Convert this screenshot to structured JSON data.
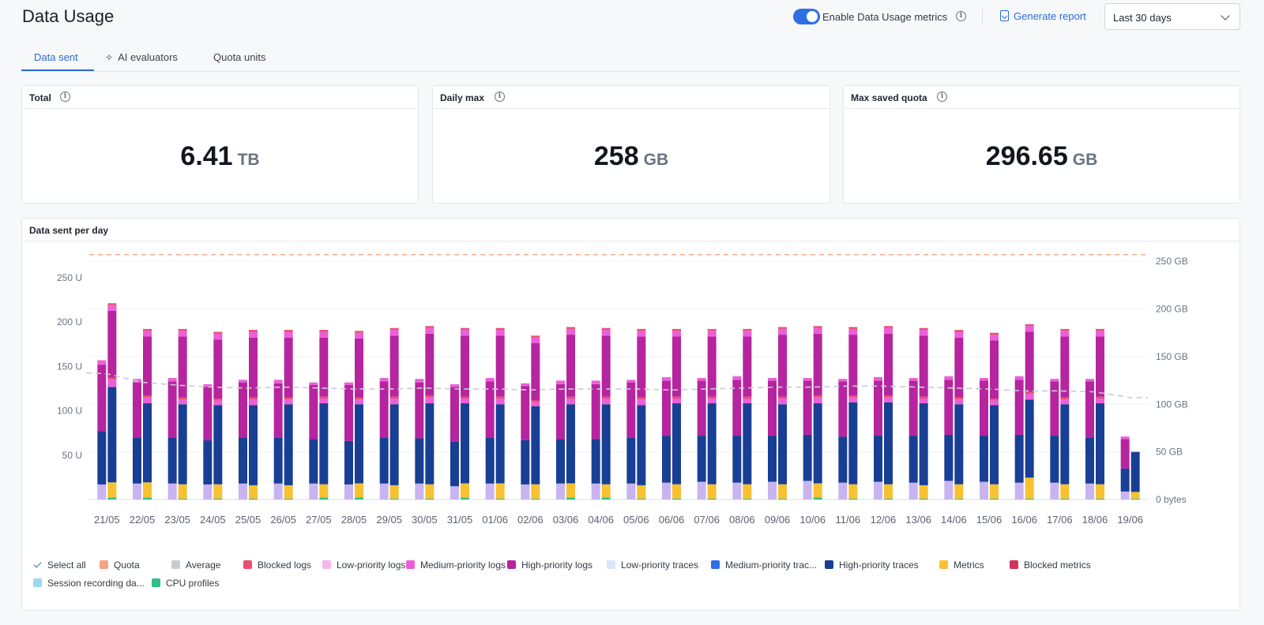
{
  "header": {
    "title": "Data Usage",
    "toggle_label": "Enable Data Usage metrics",
    "generate_report": "Generate report",
    "range_value": "Last 30 days"
  },
  "tabs": [
    {
      "label": "Data sent"
    },
    {
      "label": "AI evaluators"
    },
    {
      "label": "Quota units"
    }
  ],
  "cards": [
    {
      "title": "Total",
      "value": "6.41",
      "unit": "TB"
    },
    {
      "title": "Daily max",
      "value": "258",
      "unit": "GB"
    },
    {
      "title": "Max saved quota",
      "value": "296.65",
      "unit": "GB"
    }
  ],
  "chart": {
    "title": "Data sent per day"
  },
  "legend": {
    "select_all": "Select all",
    "items": [
      {
        "label": "Quota",
        "color": "#f4a582"
      },
      {
        "label": "Average",
        "color": "#c8ccd2"
      },
      {
        "label": "Blocked logs",
        "color": "#e8506f"
      },
      {
        "label": "Low-priority logs",
        "color": "#f7b6e8"
      },
      {
        "label": "Medium-priority logs",
        "color": "#ec5fd9"
      },
      {
        "label": "High-priority logs",
        "color": "#b6249f"
      },
      {
        "label": "Low-priority traces",
        "color": "#d9e6fb"
      },
      {
        "label": "Medium-priority trac...",
        "color": "#2f6fe4"
      },
      {
        "label": "High-priority traces",
        "color": "#183f94"
      },
      {
        "label": "Metrics",
        "color": "#f8c12f"
      },
      {
        "label": "Blocked metrics",
        "color": "#d4335f"
      },
      {
        "label": "Session recording da...",
        "color": "#9ad9f2"
      },
      {
        "label": "CPU profiles",
        "color": "#2fbf87"
      }
    ]
  },
  "chart_data": {
    "type": "bar",
    "title": "Data sent per day",
    "stacked": true,
    "categories": [
      "21/05",
      "22/05",
      "23/05",
      "24/05",
      "25/05",
      "26/05",
      "27/05",
      "28/05",
      "29/05",
      "30/05",
      "31/05",
      "01/06",
      "02/06",
      "03/06",
      "04/06",
      "05/06",
      "06/06",
      "07/06",
      "08/06",
      "09/06",
      "10/06",
      "11/06",
      "12/06",
      "13/06",
      "14/06",
      "15/06",
      "16/06",
      "17/06",
      "18/06",
      "19/06"
    ],
    "left_axis": {
      "ticks": [
        "50 U",
        "100 U",
        "150 U",
        "200 U",
        "250 U"
      ],
      "range": [
        0,
        290
      ]
    },
    "right_axis": {
      "ticks": [
        "0 bytes",
        "50 GB",
        "100 GB",
        "150 GB",
        "200 GB",
        "250 GB"
      ],
      "range": [
        0,
        250
      ]
    },
    "quota_line": {
      "name": "Quota",
      "value_gb": 257,
      "color": "#f4a582"
    },
    "average_line": {
      "name": "Average",
      "values_gb": [
        132,
        123,
        120,
        118,
        117,
        118,
        117,
        116,
        116,
        117,
        116,
        116,
        115,
        116,
        116,
        116,
        115,
        116,
        117,
        118,
        118,
        119,
        119,
        118,
        117,
        116,
        114,
        114,
        113,
        107
      ]
    },
    "grid": true,
    "legend_position": "bottom",
    "units_series": [
      {
        "name": "Low-priority traces",
        "color": "#c8b4f0",
        "values": [
          17,
          18,
          18,
          17,
          18,
          18,
          18,
          17,
          18,
          18,
          15,
          18,
          17,
          18,
          18,
          18,
          19,
          20,
          19,
          20,
          21,
          19,
          20,
          19,
          21,
          20,
          19,
          19,
          18,
          9
        ]
      },
      {
        "name": "High-priority traces",
        "color": "#183f94",
        "values": [
          60,
          52,
          52,
          50,
          52,
          52,
          50,
          49,
          52,
          51,
          50,
          52,
          50,
          50,
          50,
          52,
          53,
          52,
          53,
          52,
          52,
          52,
          52,
          53,
          52,
          52,
          54,
          53,
          52,
          26
        ]
      },
      {
        "name": "High-priority logs",
        "color": "#b6249f",
        "values": [
          75,
          62,
          63,
          60,
          62,
          61,
          61,
          63,
          63,
          63,
          62,
          63,
          61,
          62,
          62,
          62,
          62,
          62,
          63,
          62,
          61,
          62,
          62,
          62,
          62,
          62,
          62,
          61,
          63,
          33
        ]
      },
      {
        "name": "Medium-priority logs",
        "color": "#ec5fd9",
        "values": [
          5,
          4,
          4,
          3,
          3,
          4,
          3,
          3,
          4,
          4,
          3,
          4,
          3,
          4,
          4,
          3,
          4,
          3,
          4,
          3,
          3,
          3,
          4,
          3,
          4,
          3,
          4,
          3,
          3,
          3
        ]
      }
    ],
    "gb_series": [
      {
        "name": "CPU profiles",
        "color": "#2fbf87",
        "values": [
          2,
          2,
          1,
          1,
          1,
          1,
          2,
          2,
          1,
          1,
          2,
          1,
          1,
          2,
          2,
          1,
          1,
          1,
          1,
          1,
          2,
          1,
          1,
          1,
          1,
          1,
          1,
          1,
          1,
          1
        ]
      },
      {
        "name": "Metrics",
        "color": "#f8c12f",
        "values": [
          16,
          16,
          15,
          15,
          14,
          14,
          14,
          15,
          14,
          15,
          15,
          16,
          15,
          15,
          14,
          14,
          15,
          15,
          15,
          15,
          15,
          15,
          15,
          14,
          15,
          15,
          22,
          15,
          15,
          7
        ]
      },
      {
        "name": "High-priority traces",
        "color": "#183f94",
        "values": [
          100,
          83,
          84,
          83,
          84,
          85,
          85,
          83,
          85,
          85,
          84,
          83,
          82,
          83,
          84,
          84,
          85,
          85,
          85,
          84,
          84,
          86,
          86,
          86,
          84,
          83,
          82,
          84,
          85,
          42
        ]
      },
      {
        "name": "Medium-priority logs",
        "color": "#ec5fd9",
        "values": [
          8,
          6,
          5,
          5,
          6,
          5,
          5,
          5,
          6,
          6,
          5,
          6,
          4,
          6,
          6,
          6,
          5,
          5,
          5,
          6,
          6,
          5,
          5,
          5,
          5,
          5,
          6,
          5,
          5,
          0
        ]
      },
      {
        "name": "Blocked logs",
        "color": "#e8506f",
        "values": [
          2,
          2,
          2,
          2,
          2,
          2,
          2,
          2,
          2,
          2,
          2,
          2,
          2,
          2,
          2,
          2,
          2,
          2,
          2,
          2,
          2,
          2,
          2,
          2,
          2,
          2,
          2,
          2,
          2,
          0
        ]
      }
    ],
    "bar_pair_topping": {
      "name": "High-priority logs",
      "values_gb": [
        70,
        62,
        64,
        62,
        63,
        63,
        62,
        62,
        64,
        65,
        64,
        64,
        60,
        65,
        64,
        64,
        63,
        63,
        63,
        65,
        65,
        64,
        65,
        64,
        63,
        61,
        63,
        64,
        63,
        0
      ]
    }
  }
}
